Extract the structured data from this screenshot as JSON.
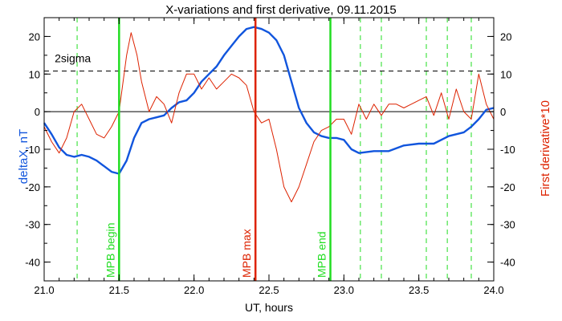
{
  "chart_data": {
    "type": "line",
    "title": "X-variations and first derivative, 09.11.2015",
    "xlabel": "UT, hours",
    "ylabel": "deltaX, nT",
    "ylabel_right": "First derivative*10",
    "xlim": [
      21.0,
      24.0
    ],
    "ylim": [
      -45,
      25
    ],
    "x_ticks": [
      "21.0",
      "21.5",
      "22.0",
      "22.5",
      "23.0",
      "23.5",
      "24.0"
    ],
    "x_tick_values": [
      21.0,
      21.5,
      22.0,
      22.5,
      23.0,
      23.5,
      24.0
    ],
    "y_ticks": [
      "20",
      "10",
      "0",
      "-10",
      "-20",
      "-30",
      "-40"
    ],
    "y_tick_values": [
      20,
      10,
      0,
      -10,
      -20,
      -30,
      -40
    ],
    "threshold": {
      "label": "2sigma",
      "value": 10.8
    },
    "zero_line": 0,
    "markers": [
      {
        "label": "MPB begin",
        "x": 21.5,
        "color": "#22dd22"
      },
      {
        "label": "MPB max",
        "x": 22.41,
        "color": "#dd2200"
      },
      {
        "label": "MPB end",
        "x": 22.91,
        "color": "#22dd22"
      }
    ],
    "dashed_markers_x": [
      21.22,
      23.11,
      23.25,
      23.55,
      23.69,
      23.85
    ],
    "series": [
      {
        "name": "deltaX, nT",
        "color": "#1155dd",
        "x": [
          21.0,
          21.05,
          21.1,
          21.15,
          21.2,
          21.25,
          21.3,
          21.35,
          21.4,
          21.45,
          21.5,
          21.55,
          21.6,
          21.65,
          21.7,
          21.75,
          21.8,
          21.85,
          21.9,
          21.95,
          22.0,
          22.05,
          22.1,
          22.15,
          22.2,
          22.25,
          22.3,
          22.35,
          22.4,
          22.45,
          22.5,
          22.55,
          22.6,
          22.65,
          22.7,
          22.75,
          22.8,
          22.85,
          22.9,
          22.95,
          23.0,
          23.05,
          23.1,
          23.2,
          23.3,
          23.4,
          23.5,
          23.6,
          23.7,
          23.8,
          23.85,
          23.9,
          23.95,
          24.0
        ],
        "y": [
          -3,
          -6,
          -9.5,
          -11.5,
          -12,
          -11.5,
          -12,
          -13,
          -14.5,
          -16,
          -16.5,
          -13,
          -7,
          -3,
          -2,
          -1.5,
          -1,
          1,
          2.5,
          3,
          5,
          8,
          10,
          12,
          15,
          17.5,
          20,
          22,
          22.5,
          22,
          21,
          19,
          15,
          8,
          1,
          -3,
          -5.5,
          -6.5,
          -7,
          -7,
          -7.5,
          -10,
          -11,
          -10.5,
          -10.5,
          -9,
          -8.5,
          -8.5,
          -6.5,
          -5.5,
          -4,
          -2,
          0.5,
          1
        ]
      },
      {
        "name": "First derivative*10",
        "color": "#dd2200",
        "x": [
          21.0,
          21.05,
          21.1,
          21.15,
          21.2,
          21.25,
          21.3,
          21.35,
          21.4,
          21.45,
          21.5,
          21.55,
          21.58,
          21.62,
          21.65,
          21.7,
          21.75,
          21.8,
          21.85,
          21.9,
          21.95,
          22.0,
          22.05,
          22.1,
          22.15,
          22.2,
          22.25,
          22.3,
          22.35,
          22.4,
          22.45,
          22.5,
          22.55,
          22.6,
          22.65,
          22.7,
          22.75,
          22.8,
          22.85,
          22.9,
          22.95,
          23.0,
          23.05,
          23.1,
          23.15,
          23.2,
          23.25,
          23.3,
          23.35,
          23.4,
          23.45,
          23.5,
          23.55,
          23.6,
          23.65,
          23.7,
          23.75,
          23.8,
          23.85,
          23.9,
          23.95,
          24.0
        ],
        "y": [
          -4,
          -8,
          -11,
          -7,
          0,
          2,
          -2,
          -6,
          -7,
          -4,
          0,
          15,
          21,
          15,
          8,
          0,
          4,
          2,
          -3,
          5,
          10,
          10,
          6,
          9,
          6,
          8,
          10,
          9,
          7,
          0,
          -3,
          -2,
          -10,
          -20,
          -24,
          -20,
          -14,
          -8,
          -5,
          -4,
          -2,
          -2,
          -6,
          2,
          -2,
          2,
          -1,
          2,
          2,
          1,
          2,
          3,
          4,
          -1,
          5,
          -2,
          6,
          0,
          -2,
          10,
          2,
          -2
        ]
      }
    ]
  }
}
